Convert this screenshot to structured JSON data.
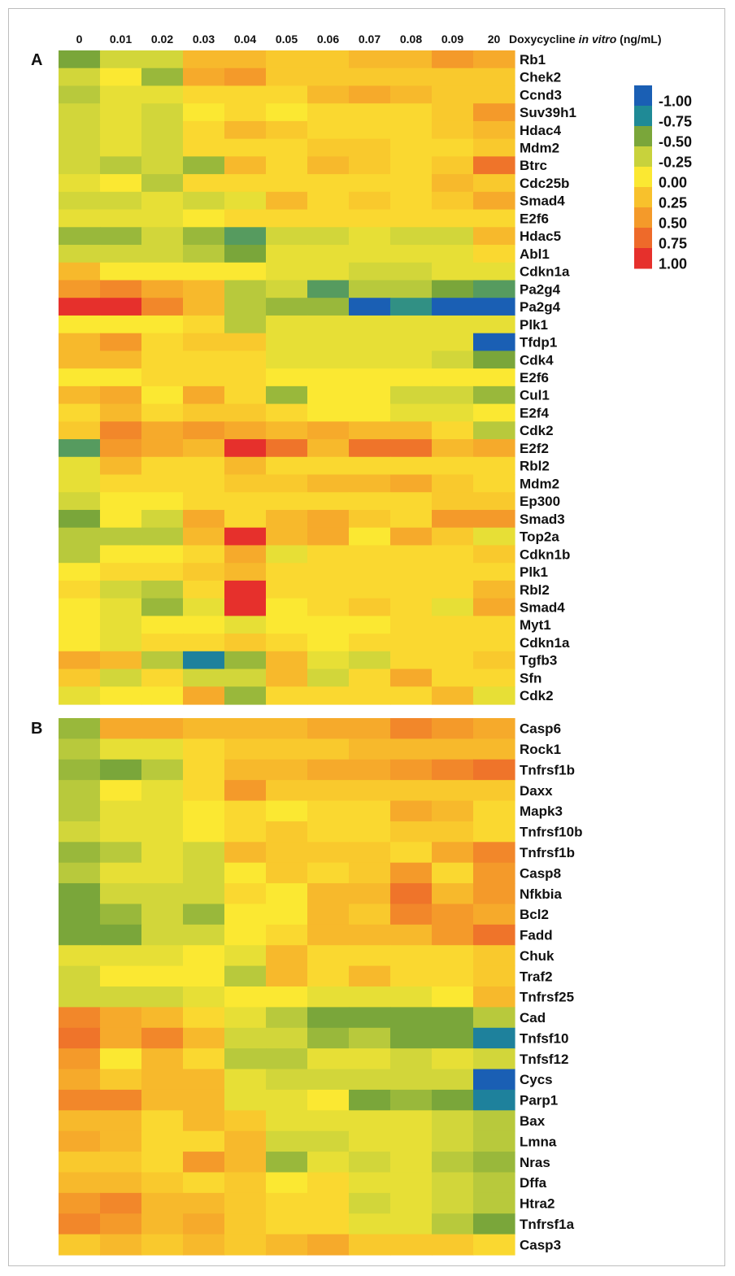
{
  "chart_data": {
    "type": "heatmap",
    "axis_title": {
      "prefix": "Doxycycline ",
      "italic": "in vitro",
      "suffix": " (ng/mL)"
    },
    "columns": [
      "0",
      "0.01",
      "0.02",
      "0.03",
      "0.04",
      "0.05",
      "0.06",
      "0.07",
      "0.08",
      "0.09",
      "20"
    ],
    "color_scale": {
      "range": [
        -1,
        1
      ],
      "stops": [
        {
          "value": -1.0,
          "label": "-1.00",
          "color": "#1a5fb4"
        },
        {
          "value": -0.75,
          "label": "-0.75",
          "color": "#1f8a96"
        },
        {
          "value": -0.5,
          "label": "-0.50",
          "color": "#7aa63a"
        },
        {
          "value": -0.25,
          "label": "-0.25",
          "color": "#c8d23c"
        },
        {
          "value": 0.0,
          "label": "0.00",
          "color": "#fbe832"
        },
        {
          "value": 0.25,
          "label": "0.25",
          "color": "#f8c12c"
        },
        {
          "value": 0.5,
          "label": "0.50",
          "color": "#f49a2a"
        },
        {
          "value": 0.75,
          "label": "0.75",
          "color": "#ee6a2a"
        },
        {
          "value": 1.0,
          "label": "1.00",
          "color": "#e6302c"
        }
      ]
    },
    "panels": [
      {
        "label": "A",
        "genes": [
          "Rb1",
          "Chek2",
          "Ccnd3",
          "Suv39h1",
          "Hdac4",
          "Mdm2",
          "Btrc",
          "Cdc25b",
          "Smad4",
          "E2f6",
          "Hdac5",
          "Abl1",
          "Cdkn1a",
          "Pa2g4",
          "Pa2g4",
          "Plk1",
          "Tfdp1",
          "Cdk4",
          "E2f6",
          "Cul1",
          "E2f4",
          "Cdk2",
          "E2f2",
          "Rbl2",
          "Mdm2",
          "Ep300",
          "Smad3",
          "Top2a",
          "Cdkn1b",
          "Plk1",
          "Rbl2",
          "Smad4",
          "Myt1",
          "Cdkn1a",
          "Tgfb3",
          "Sfn",
          "Cdk2"
        ],
        "values": [
          [
            -0.5,
            -0.2,
            -0.2,
            0.3,
            0.3,
            0.2,
            0.2,
            0.3,
            0.3,
            0.5,
            0.4
          ],
          [
            -0.2,
            0.0,
            -0.4,
            0.4,
            0.5,
            0.2,
            0.2,
            0.2,
            0.2,
            0.2,
            0.2
          ],
          [
            -0.3,
            -0.1,
            -0.1,
            0.1,
            0.1,
            0.1,
            0.3,
            0.4,
            0.3,
            0.2,
            0.2
          ],
          [
            -0.2,
            -0.1,
            -0.2,
            0.0,
            0.1,
            0.0,
            0.1,
            0.1,
            0.1,
            0.2,
            0.5
          ],
          [
            -0.2,
            -0.1,
            -0.2,
            0.1,
            0.3,
            0.2,
            0.1,
            0.1,
            0.1,
            0.2,
            0.3
          ],
          [
            -0.2,
            -0.1,
            -0.2,
            0.1,
            0.1,
            0.1,
            0.2,
            0.2,
            0.1,
            0.1,
            0.2
          ],
          [
            -0.2,
            -0.3,
            -0.2,
            -0.4,
            0.3,
            0.1,
            0.3,
            0.2,
            0.1,
            0.2,
            0.7
          ],
          [
            -0.1,
            0.0,
            -0.3,
            0.1,
            0.1,
            0.1,
            0.1,
            0.1,
            0.1,
            0.3,
            0.2
          ],
          [
            -0.2,
            -0.2,
            -0.1,
            -0.2,
            -0.1,
            0.3,
            0.1,
            0.2,
            0.1,
            0.2,
            0.4
          ],
          [
            -0.1,
            -0.1,
            -0.1,
            0.0,
            0.1,
            0.1,
            0.1,
            0.1,
            0.1,
            0.1,
            0.1
          ],
          [
            -0.4,
            -0.4,
            -0.2,
            -0.4,
            -0.6,
            -0.2,
            -0.2,
            -0.1,
            -0.2,
            -0.2,
            0.3
          ],
          [
            -0.2,
            -0.2,
            -0.2,
            -0.3,
            -0.5,
            -0.1,
            -0.1,
            -0.1,
            -0.1,
            -0.1,
            0.1
          ],
          [
            0.3,
            0.0,
            0.0,
            0.0,
            0.0,
            -0.1,
            -0.1,
            -0.2,
            -0.2,
            -0.1,
            -0.1
          ],
          [
            0.5,
            0.6,
            0.4,
            0.3,
            -0.3,
            -0.2,
            -0.6,
            -0.3,
            -0.3,
            -0.5,
            -0.6
          ],
          [
            1.0,
            1.0,
            0.6,
            0.3,
            -0.3,
            -0.4,
            -0.4,
            -1.0,
            -0.7,
            -1.0,
            -1.0
          ],
          [
            0.0,
            0.0,
            0.0,
            0.1,
            -0.3,
            -0.1,
            -0.1,
            -0.1,
            -0.1,
            -0.1,
            -0.1
          ],
          [
            0.3,
            0.5,
            0.1,
            0.2,
            0.2,
            -0.1,
            -0.1,
            -0.1,
            -0.1,
            -0.1,
            -1.0
          ],
          [
            0.3,
            0.3,
            0.1,
            0.1,
            0.1,
            -0.1,
            -0.1,
            -0.1,
            -0.1,
            -0.2,
            -0.5
          ],
          [
            0.0,
            0.0,
            0.1,
            0.1,
            0.1,
            0.0,
            0.0,
            0.0,
            0.0,
            0.0,
            0.0
          ],
          [
            0.3,
            0.4,
            0.0,
            0.4,
            0.1,
            -0.4,
            0.0,
            0.0,
            -0.2,
            -0.2,
            -0.4
          ],
          [
            0.1,
            0.3,
            0.1,
            0.2,
            0.2,
            0.1,
            0.0,
            0.0,
            -0.1,
            -0.1,
            0.0
          ],
          [
            0.2,
            0.6,
            0.4,
            0.5,
            0.4,
            0.3,
            0.4,
            0.3,
            0.3,
            0.1,
            -0.3
          ],
          [
            -0.6,
            0.5,
            0.4,
            0.3,
            1.0,
            0.7,
            0.3,
            0.7,
            0.7,
            0.3,
            0.4
          ],
          [
            -0.1,
            0.3,
            0.1,
            0.1,
            0.3,
            0.1,
            0.1,
            0.1,
            0.1,
            0.1,
            0.1
          ],
          [
            -0.1,
            0.1,
            0.1,
            0.1,
            0.2,
            0.2,
            0.3,
            0.3,
            0.4,
            0.2,
            0.1
          ],
          [
            -0.2,
            0.0,
            0.0,
            0.1,
            0.1,
            0.1,
            0.1,
            0.1,
            0.1,
            0.2,
            0.2
          ],
          [
            -0.5,
            0.0,
            -0.2,
            0.4,
            0.1,
            0.3,
            0.4,
            0.2,
            0.1,
            0.5,
            0.5
          ],
          [
            -0.3,
            -0.3,
            -0.3,
            0.3,
            1.0,
            0.3,
            0.4,
            0.0,
            0.4,
            0.2,
            -0.1
          ],
          [
            -0.3,
            0.0,
            0.0,
            0.1,
            0.4,
            -0.1,
            0.1,
            0.1,
            0.1,
            0.1,
            0.2
          ],
          [
            0.0,
            0.1,
            0.1,
            0.2,
            0.3,
            0.1,
            0.1,
            0.1,
            0.1,
            0.1,
            0.1
          ],
          [
            0.1,
            -0.2,
            -0.3,
            0.1,
            1.0,
            0.1,
            0.1,
            0.1,
            0.1,
            0.1,
            0.3
          ],
          [
            0.0,
            -0.1,
            -0.4,
            -0.1,
            1.0,
            0.0,
            0.1,
            0.2,
            0.1,
            -0.1,
            0.4
          ],
          [
            0.0,
            -0.1,
            0.0,
            0.0,
            -0.1,
            0.0,
            0.0,
            0.0,
            0.1,
            0.1,
            0.1
          ],
          [
            0.0,
            -0.1,
            0.1,
            0.1,
            0.2,
            0.1,
            0.0,
            0.1,
            0.1,
            0.1,
            0.1
          ],
          [
            0.4,
            0.3,
            -0.3,
            -0.8,
            -0.4,
            0.3,
            -0.1,
            -0.2,
            0.1,
            0.1,
            0.2
          ],
          [
            0.2,
            -0.2,
            0.1,
            -0.2,
            -0.2,
            0.3,
            -0.2,
            0.1,
            0.4,
            0.1,
            0.1
          ],
          [
            -0.1,
            0.0,
            0.0,
            0.4,
            -0.4,
            0.1,
            0.1,
            0.1,
            0.1,
            0.3,
            -0.1
          ]
        ]
      },
      {
        "label": "B",
        "genes": [
          "Casp6",
          "Rock1",
          "Tnfrsf1b",
          "Daxx",
          "Mapk3",
          "Tnfrsf10b",
          "Tnfrsf1b",
          "Casp8",
          "Nfkbia",
          "Bcl2",
          "Fadd",
          "Chuk",
          "Traf2",
          "Tnfrsf25",
          "Cad",
          "Tnfsf10",
          "Tnfsf12",
          "Cycs",
          "Parp1",
          "Bax",
          "Lmna",
          "Nras",
          "Dffa",
          "Htra2",
          "Tnfrsf1a",
          "Casp3"
        ],
        "values": [
          [
            -0.4,
            0.4,
            0.4,
            0.3,
            0.3,
            0.3,
            0.4,
            0.4,
            0.6,
            0.5,
            0.4
          ],
          [
            -0.3,
            -0.1,
            -0.1,
            0.1,
            0.2,
            0.2,
            0.2,
            0.3,
            0.3,
            0.3,
            0.3
          ],
          [
            -0.4,
            -0.5,
            -0.3,
            0.1,
            0.3,
            0.3,
            0.4,
            0.4,
            0.5,
            0.6,
            0.7
          ],
          [
            -0.3,
            0.0,
            -0.1,
            0.1,
            0.5,
            0.2,
            0.2,
            0.2,
            0.2,
            0.2,
            0.2
          ],
          [
            -0.3,
            -0.1,
            -0.1,
            0.0,
            0.1,
            0.0,
            0.1,
            0.1,
            0.4,
            0.3,
            0.1
          ],
          [
            -0.2,
            -0.1,
            -0.1,
            0.0,
            0.1,
            0.2,
            0.1,
            0.1,
            0.2,
            0.2,
            0.1
          ],
          [
            -0.4,
            -0.3,
            -0.1,
            -0.2,
            0.3,
            0.2,
            0.2,
            0.2,
            0.1,
            0.4,
            0.6
          ],
          [
            -0.3,
            -0.1,
            -0.1,
            -0.2,
            0.0,
            0.2,
            0.1,
            0.2,
            0.5,
            0.1,
            0.5
          ],
          [
            -0.5,
            -0.2,
            -0.2,
            -0.2,
            0.1,
            0.0,
            0.3,
            0.3,
            0.7,
            0.3,
            0.5
          ],
          [
            -0.5,
            -0.4,
            -0.2,
            -0.4,
            0.0,
            0.0,
            0.3,
            0.2,
            0.6,
            0.5,
            0.4
          ],
          [
            -0.5,
            -0.5,
            -0.2,
            -0.2,
            0.0,
            0.1,
            0.3,
            0.3,
            0.3,
            0.5,
            0.7
          ],
          [
            -0.1,
            -0.1,
            -0.1,
            0.0,
            -0.1,
            0.3,
            0.1,
            0.1,
            0.1,
            0.1,
            0.2
          ],
          [
            -0.2,
            0.0,
            0.0,
            0.0,
            -0.3,
            0.3,
            0.1,
            0.3,
            0.1,
            0.1,
            0.2
          ],
          [
            -0.2,
            -0.2,
            -0.2,
            -0.1,
            0.0,
            0.0,
            -0.1,
            -0.1,
            -0.1,
            0.0,
            0.3
          ],
          [
            0.6,
            0.4,
            0.3,
            0.1,
            -0.1,
            -0.3,
            -0.5,
            -0.5,
            -0.5,
            -0.5,
            -0.3
          ],
          [
            0.7,
            0.4,
            0.6,
            0.3,
            -0.2,
            -0.2,
            -0.4,
            -0.3,
            -0.5,
            -0.5,
            -0.8
          ],
          [
            0.5,
            0.0,
            0.3,
            0.1,
            -0.3,
            -0.3,
            -0.1,
            -0.1,
            -0.2,
            -0.1,
            -0.2
          ],
          [
            0.4,
            0.2,
            0.3,
            0.3,
            -0.1,
            -0.2,
            -0.2,
            -0.2,
            -0.2,
            -0.2,
            -1.0
          ],
          [
            0.6,
            0.6,
            0.3,
            0.3,
            -0.1,
            -0.1,
            0.0,
            -0.5,
            -0.4,
            -0.5,
            -0.8
          ],
          [
            0.3,
            0.3,
            0.1,
            0.3,
            0.2,
            -0.1,
            -0.1,
            -0.1,
            -0.1,
            -0.2,
            -0.3
          ],
          [
            0.4,
            0.3,
            0.1,
            0.1,
            0.3,
            -0.2,
            -0.2,
            -0.1,
            -0.1,
            -0.2,
            -0.3
          ],
          [
            0.2,
            0.2,
            0.1,
            0.5,
            0.3,
            -0.4,
            -0.1,
            -0.2,
            -0.1,
            -0.3,
            -0.4
          ],
          [
            0.3,
            0.3,
            0.2,
            0.1,
            0.2,
            0.0,
            0.1,
            -0.1,
            -0.1,
            -0.2,
            -0.3
          ],
          [
            0.5,
            0.6,
            0.3,
            0.3,
            0.2,
            0.1,
            0.1,
            -0.2,
            -0.1,
            -0.2,
            -0.3
          ],
          [
            0.6,
            0.5,
            0.3,
            0.4,
            0.2,
            0.1,
            0.1,
            -0.1,
            -0.1,
            -0.3,
            -0.5
          ],
          [
            0.2,
            0.3,
            0.2,
            0.3,
            0.2,
            0.3,
            0.4,
            0.2,
            0.2,
            0.2,
            0.1
          ]
        ]
      }
    ]
  }
}
